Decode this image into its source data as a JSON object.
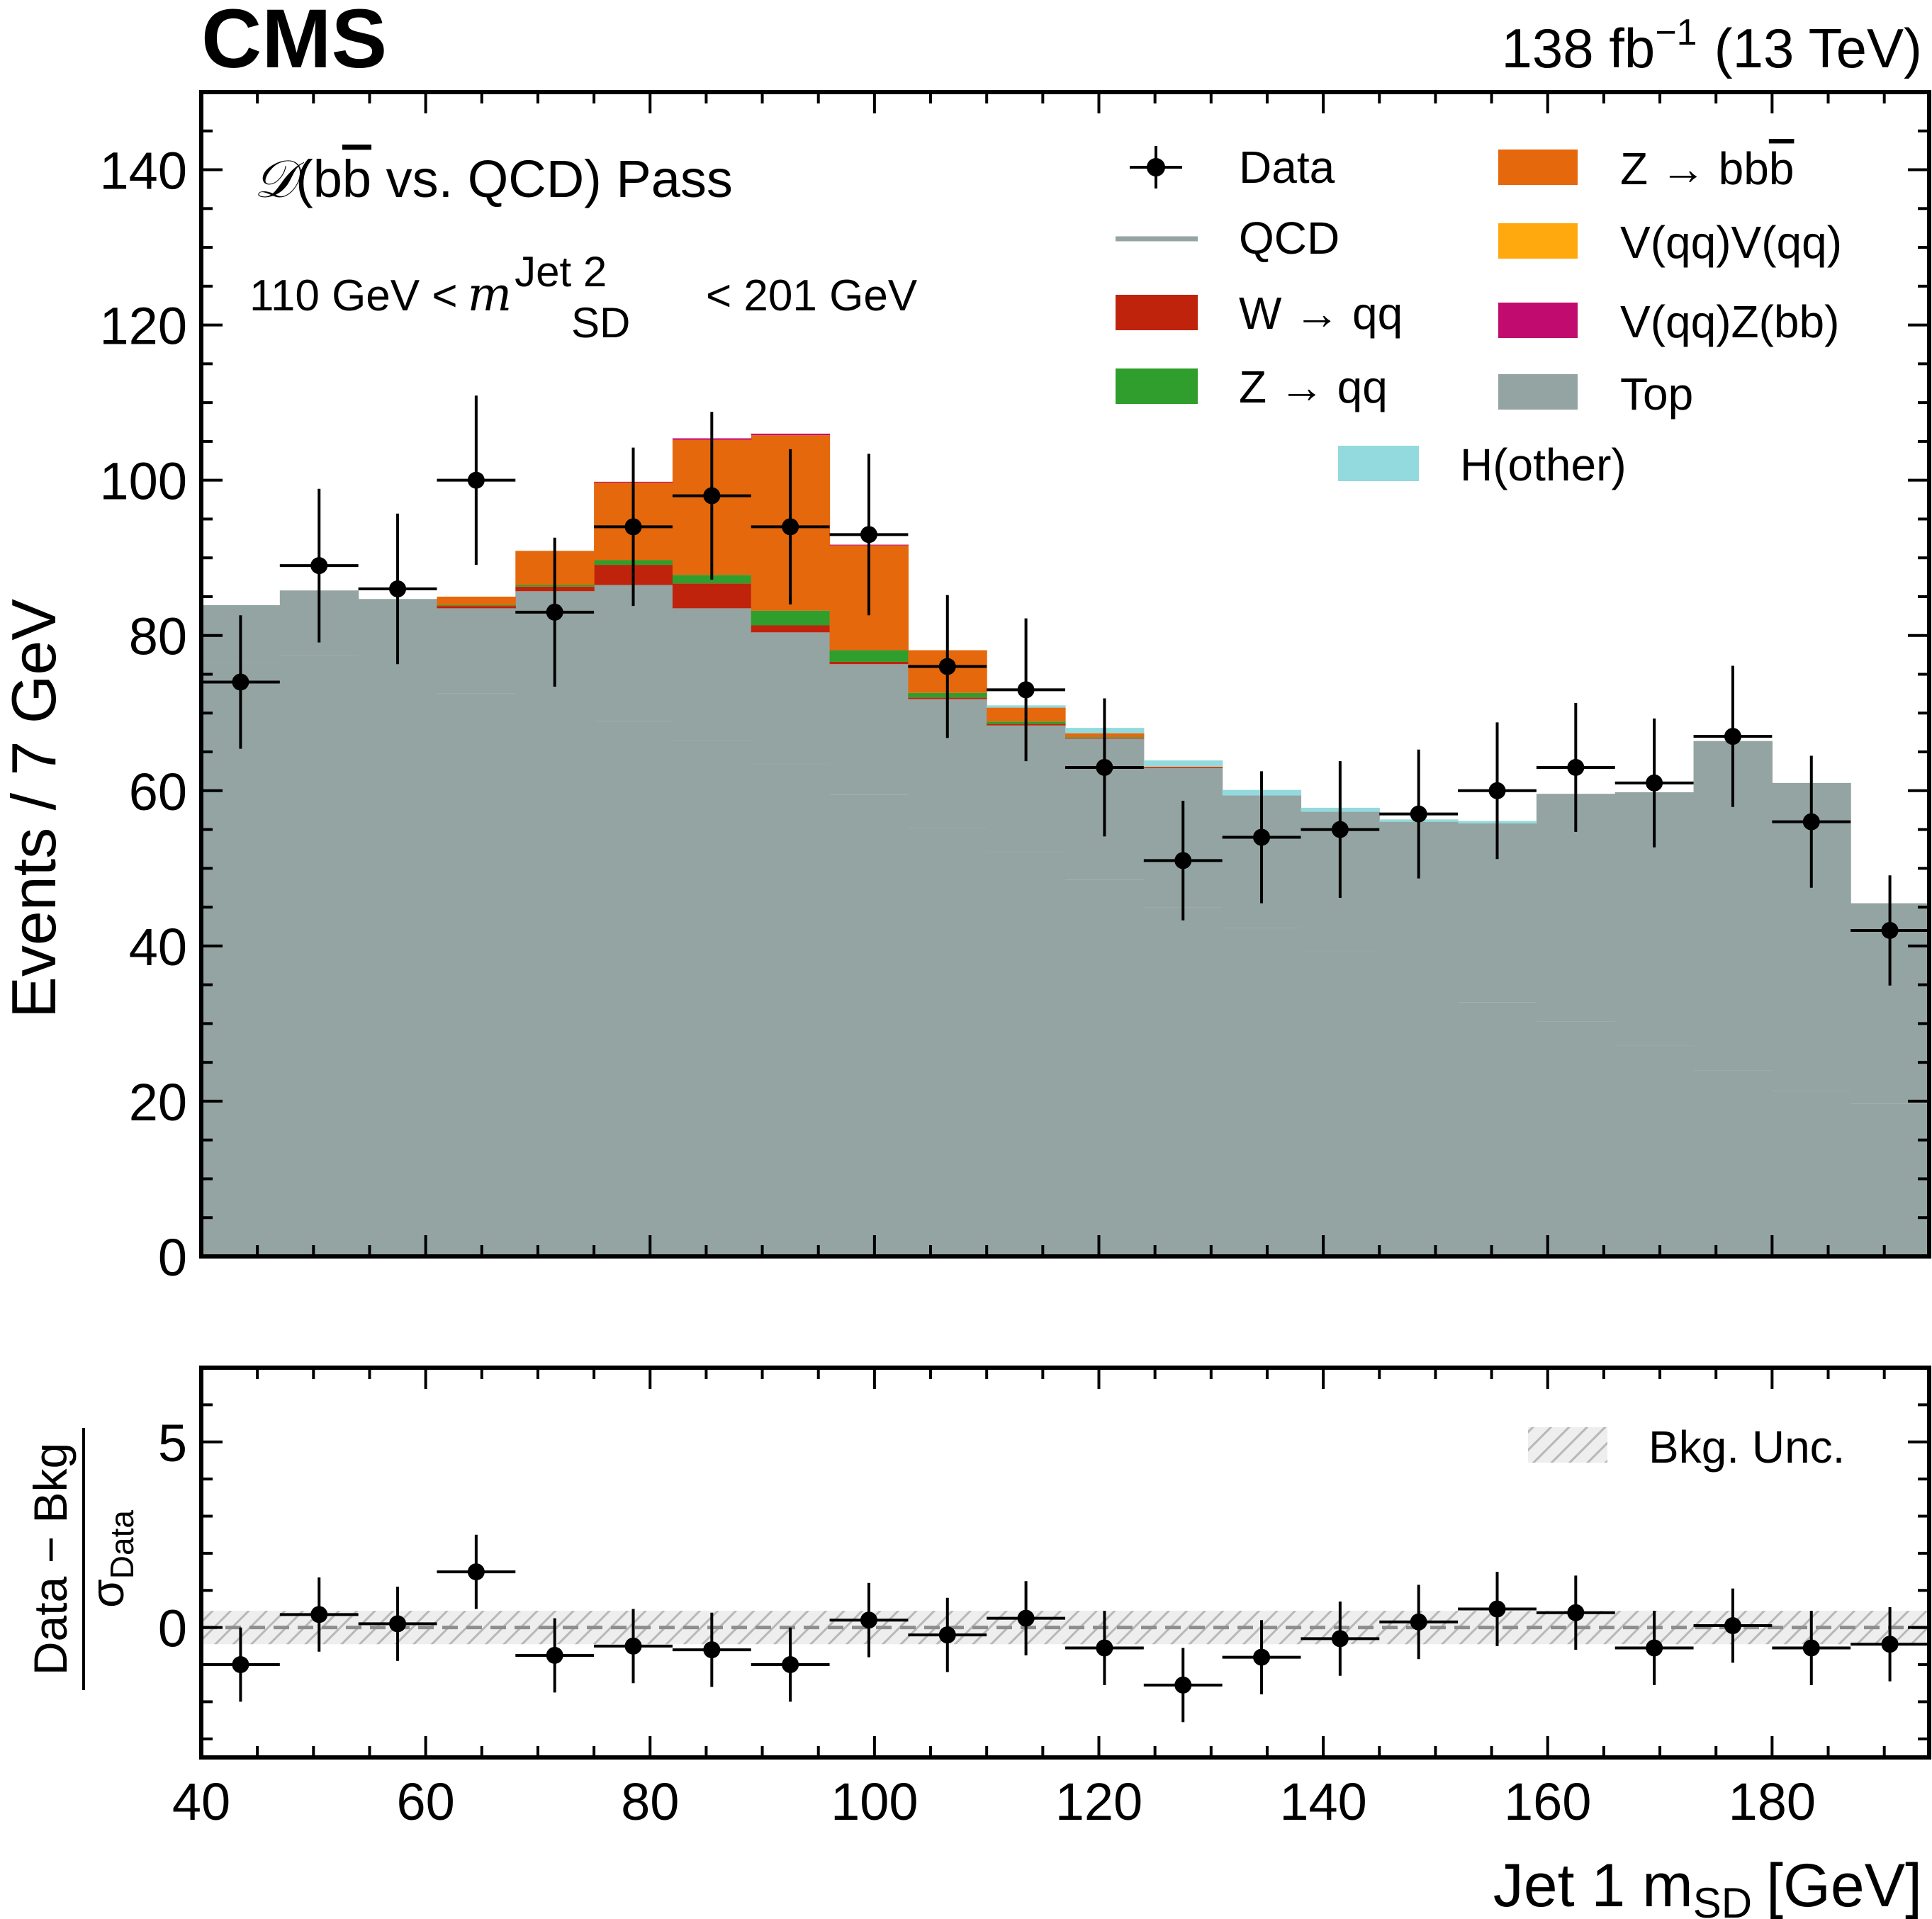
{
  "header": {
    "experiment": "CMS",
    "lumi": "138 fb",
    "lumi_exp": "−1",
    "energy": "(13 TeV)"
  },
  "annotations": {
    "region_script": "𝒟",
    "region_a": "(b",
    "region_bbar": "b",
    "region_b": " vs. QCD) Pass",
    "mass_low": "110 GeV <",
    "mass_var": "m",
    "mass_sup": "Jet 2",
    "mass_sub": "SD",
    "mass_high": "< 201 GeV"
  },
  "legend": [
    {
      "key": "data",
      "label": "Data",
      "color": "#000000",
      "type": "marker"
    },
    {
      "key": "qcd",
      "label": "QCD",
      "color": "#94a4a2",
      "type": "line"
    },
    {
      "key": "wqq",
      "label": "W → qq",
      "color": "#c0230c",
      "type": "fill"
    },
    {
      "key": "zqq",
      "label": "Z → qq",
      "color": "#2f9e2c",
      "type": "fill"
    },
    {
      "key": "zbb",
      "label": "Z → bb",
      "overline": "b",
      "color": "#e5680d",
      "type": "fill"
    },
    {
      "key": "vv",
      "label": "V(qq)V(qq)",
      "color": "#ffa90e",
      "type": "fill"
    },
    {
      "key": "vzbb",
      "label": "V(qq)Z(bb)",
      "color": "#c20b6f",
      "type": "fill"
    },
    {
      "key": "top",
      "label": "Top",
      "color": "#94a4a2",
      "type": "fill"
    },
    {
      "key": "hother",
      "label": "H(other)",
      "color": "#92dadd",
      "type": "fill"
    }
  ],
  "ratio_legend": {
    "label": "Bkg. Unc.",
    "color": "#bdbdbd"
  },
  "axes": {
    "xlabel": "Jet 1 m",
    "xlabel_sub": "SD",
    "xlabel_unit": "[GeV]",
    "ylabel": "Events / 7 GeV",
    "ratio_ylabel_num": "Data − Bkg",
    "ratio_ylabel_den": "σ",
    "ratio_ylabel_den_sub": "Data",
    "xlim": [
      40,
      194
    ],
    "ylim": [
      0,
      150
    ],
    "ratio_ylim": [
      -3.5,
      7.0
    ],
    "xticks": [
      "40",
      "60",
      "80",
      "100",
      "120",
      "140",
      "160",
      "180"
    ],
    "yticks": [
      "0",
      "20",
      "40",
      "60",
      "80",
      "100",
      "120",
      "140"
    ],
    "ratio_yticks": [
      "0",
      "5"
    ]
  },
  "chart_data": {
    "type": "bar",
    "title": "",
    "stacked": true,
    "bin_edges": [
      40,
      47,
      54,
      61,
      68,
      75,
      82,
      89,
      96,
      103,
      110,
      117,
      124,
      131,
      138,
      145,
      152,
      159,
      166,
      173,
      180,
      187,
      194
    ],
    "series": [
      {
        "name": "QCD",
        "values": [
          76.5,
          77.5,
          75.0,
          72.5,
          70.8,
          69.0,
          66.5,
          63.5,
          59.5,
          55.2,
          52.0,
          48.5,
          45.0,
          42.3,
          39.3,
          35.7,
          32.7,
          30.3,
          27.2,
          24.0,
          21.3,
          19.7
        ]
      },
      {
        "name": "Top",
        "values": [
          7.4,
          8.3,
          9.7,
          11.0,
          14.9,
          17.5,
          17.0,
          16.9,
          16.8,
          16.6,
          16.4,
          18.2,
          17.9,
          17.1,
          18.0,
          20.3,
          23.1,
          29.3,
          32.6,
          42.4,
          39.7,
          25.8
        ]
      },
      {
        "name": "W → qq",
        "values": [
          0,
          0,
          0,
          0.3,
          0.6,
          2.6,
          3.2,
          0.9,
          0.3,
          0.2,
          0.2,
          0.1,
          0.1,
          0,
          0,
          0,
          0,
          0,
          0,
          0,
          0,
          0
        ]
      },
      {
        "name": "Z → qq",
        "values": [
          0,
          0,
          0,
          0.1,
          0.2,
          0.6,
          1.1,
          1.9,
          1.5,
          0.6,
          0.3,
          0.1,
          0,
          0,
          0,
          0,
          0,
          0,
          0,
          0,
          0,
          0
        ]
      },
      {
        "name": "Z → bb",
        "values": [
          0,
          0,
          0,
          1.1,
          4.4,
          10.0,
          17.4,
          22.6,
          13.5,
          5.5,
          1.8,
          0.5,
          0.1,
          0,
          0,
          0,
          0,
          0,
          0,
          0,
          0,
          0
        ]
      },
      {
        "name": "V(qq)V(qq)",
        "values": [
          0,
          0,
          0,
          0,
          0,
          0,
          0,
          0,
          0,
          0,
          0,
          0,
          0,
          0,
          0,
          0,
          0,
          0,
          0,
          0,
          0,
          0
        ]
      },
      {
        "name": "V(qq)Z(bb)",
        "values": [
          0,
          0,
          0,
          0,
          0,
          0.1,
          0.2,
          0.2,
          0.1,
          0,
          0,
          0,
          0,
          0,
          0,
          0,
          0,
          0,
          0,
          0,
          0,
          0
        ]
      },
      {
        "name": "H(other)",
        "values": [
          0,
          0,
          0,
          0,
          0,
          0,
          0,
          0,
          0,
          0,
          0.3,
          0.7,
          0.8,
          0.7,
          0.5,
          0.3,
          0.3,
          0,
          0,
          0,
          0,
          0
        ]
      }
    ],
    "data": {
      "name": "Data",
      "x": [
        43.5,
        50.5,
        57.5,
        64.5,
        71.5,
        78.5,
        85.5,
        92.5,
        99.5,
        106.5,
        113.5,
        120.5,
        127.5,
        134.5,
        141.5,
        148.5,
        155.5,
        162.5,
        169.5,
        176.5,
        183.5,
        190.5
      ],
      "values": [
        74,
        89,
        86,
        100,
        83,
        94,
        98,
        94,
        93,
        76,
        73,
        63,
        51,
        54,
        55,
        57,
        60,
        63,
        61,
        67,
        56,
        42
      ],
      "errors": [
        8.6,
        9.9,
        9.7,
        10.9,
        9.6,
        10.2,
        10.8,
        10.0,
        10.4,
        9.2,
        9.2,
        8.9,
        7.7,
        8.5,
        8.8,
        8.3,
        8.8,
        8.3,
        8.3,
        9.1,
        8.5,
        7.1
      ]
    },
    "ratio": {
      "name": "(Data − Bkg) / σ_Data",
      "values": [
        -1.0,
        0.35,
        0.1,
        1.5,
        -0.75,
        -0.5,
        -0.6,
        -1.0,
        0.2,
        -0.2,
        0.25,
        -0.55,
        -1.55,
        -0.8,
        -0.3,
        0.15,
        0.5,
        0.4,
        -0.55,
        0.05,
        -0.55,
        -0.45
      ],
      "bkg_unc_band": [
        -0.45,
        0.45
      ]
    },
    "xlabel": "Jet 1 mSD [GeV]",
    "ylabel": "Events / 7 GeV",
    "ylim": [
      0,
      150
    ]
  }
}
